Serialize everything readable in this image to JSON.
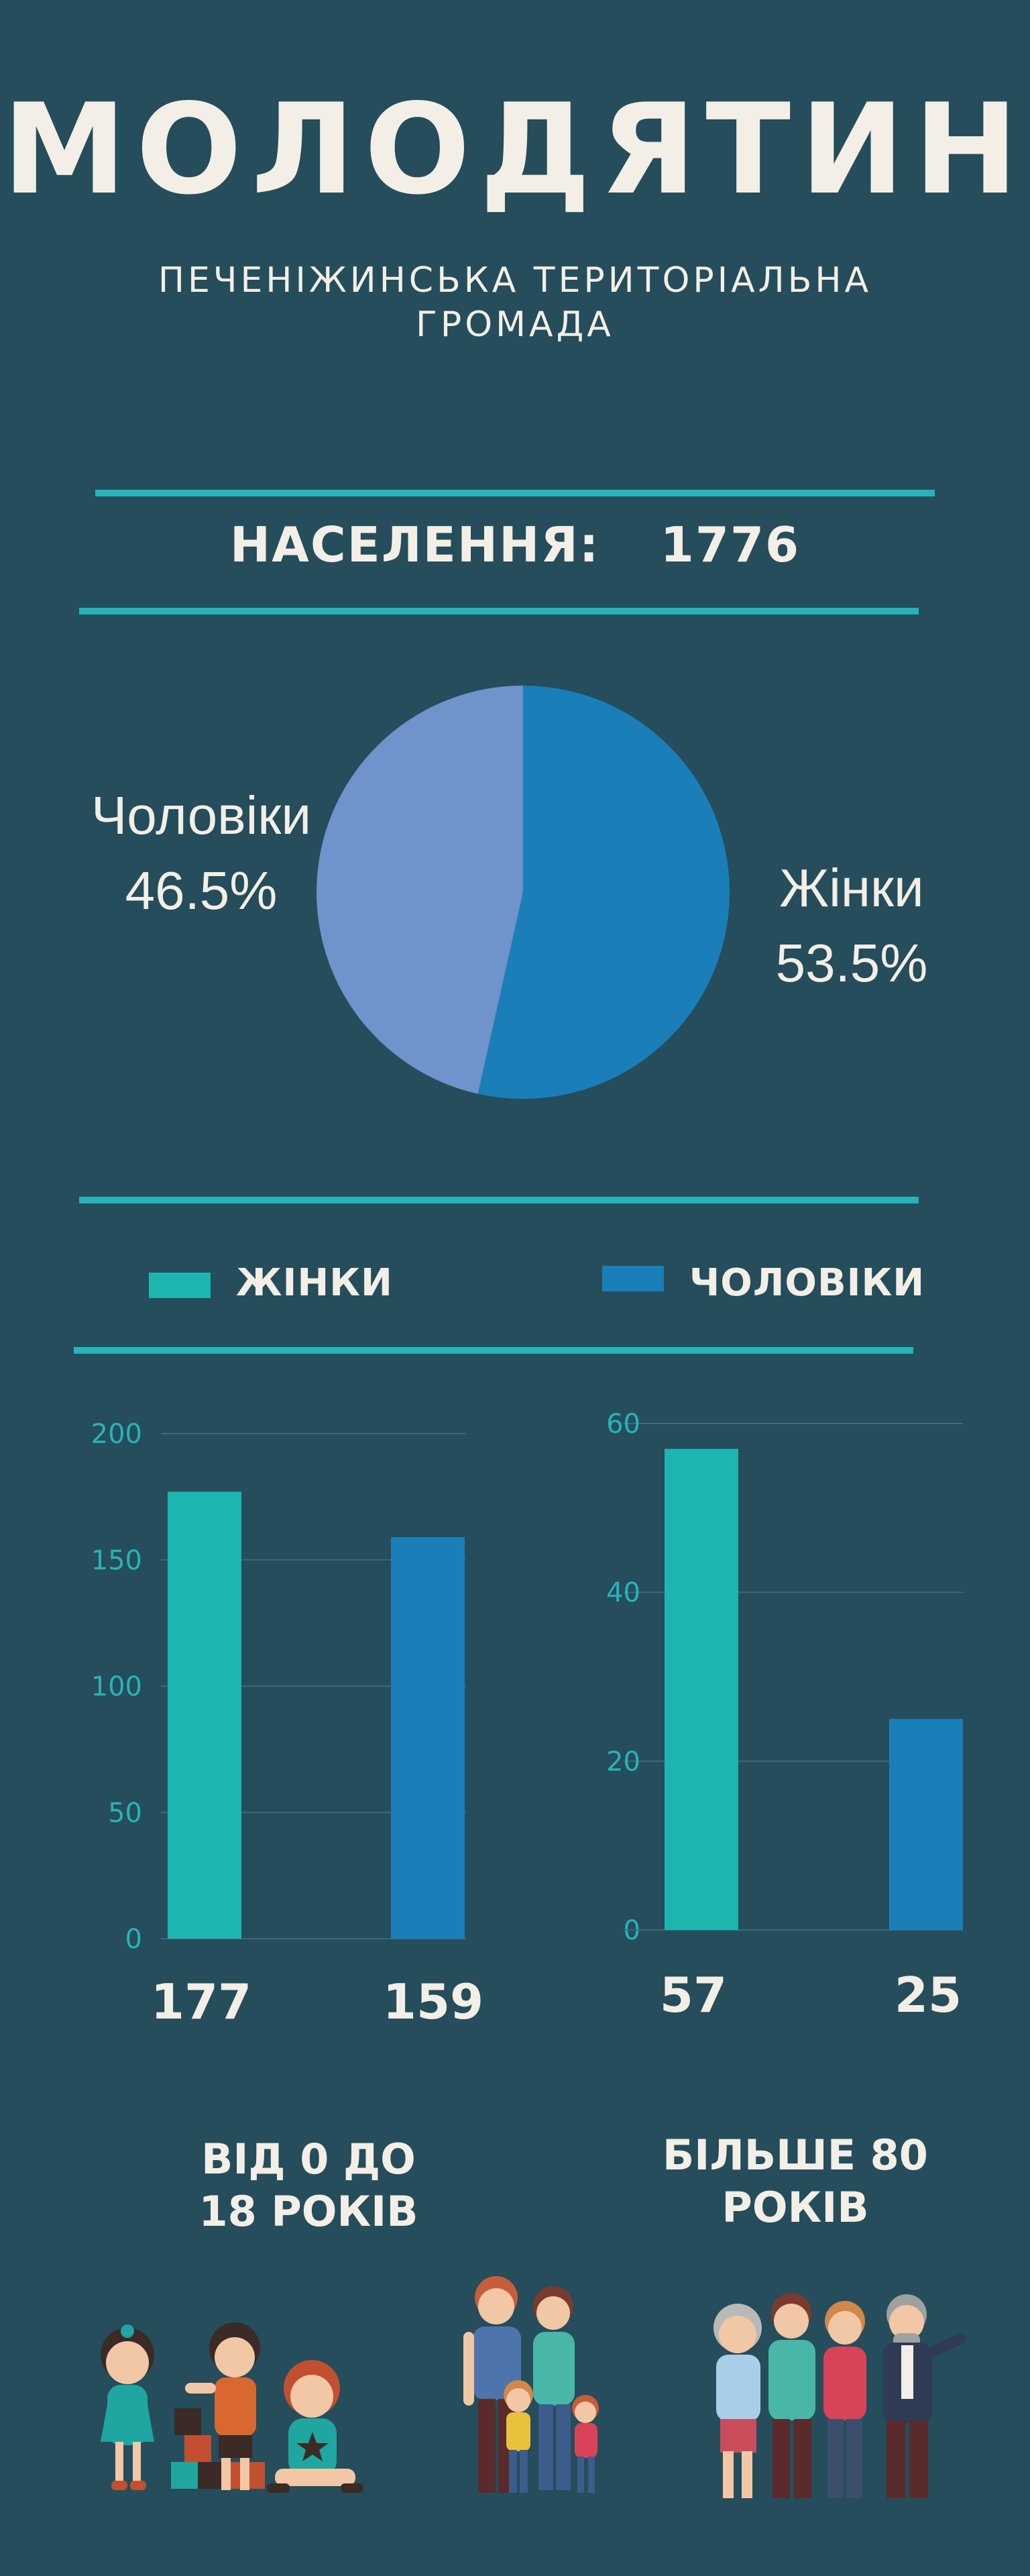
{
  "title": "МОЛОДЯТИН",
  "subtitle_line1": "ПЕЧЕНІЖИНСЬКА ТЕРИТОРІАЛЬНА",
  "subtitle_line2": "ГРОМАДА",
  "population_label": "НАСЕЛЕННЯ:",
  "population_value": "1776",
  "legend": [
    {
      "label": "ЖІНКИ",
      "color": "#1cb5b0"
    },
    {
      "label": "ЧОЛОВІКИ",
      "color": "#1a7fb8"
    }
  ],
  "captions": {
    "young_line1": "ВІД 0 ДО",
    "young_line2": "18 РОКІВ",
    "old_line1": "БІЛЬШЕ 80",
    "old_line2": "РОКІВ"
  },
  "colors": {
    "background": "#254d5b",
    "accent": "#27b3b8",
    "women": "#1a7fb8",
    "men": "#6f93cb",
    "bar_women": "#1cb5b0",
    "bar_men": "#1a7fb8"
  },
  "illustrations": [
    "children-playing-icon",
    "family-icon",
    "elderly-group-icon"
  ],
  "chart_data": [
    {
      "type": "pie",
      "labels": [
        "Чоловіки",
        "Жінки"
      ],
      "values": [
        46.5,
        53.5
      ],
      "display": [
        "46.5%",
        "53.5%"
      ],
      "colors": [
        "#6f93cb",
        "#1a7fb8"
      ]
    },
    {
      "type": "bar",
      "categories": [
        "Жінки",
        "Чоловіки"
      ],
      "values": [
        177,
        159
      ],
      "value_labels": [
        "177",
        "159"
      ],
      "ylim": [
        0,
        200
      ],
      "yticks": [
        "0",
        "50",
        "100",
        "150",
        "200"
      ],
      "grid": true,
      "colors": [
        "#1cb5b0",
        "#1a7fb8"
      ]
    },
    {
      "type": "bar",
      "categories": [
        "Жінки",
        "Чоловіки"
      ],
      "values": [
        57,
        25
      ],
      "value_labels": [
        "57",
        "25"
      ],
      "ylim": [
        0,
        60
      ],
      "yticks": [
        "0",
        "20",
        "40",
        "60"
      ],
      "grid": true,
      "colors": [
        "#1cb5b0",
        "#1a7fb8"
      ]
    }
  ]
}
